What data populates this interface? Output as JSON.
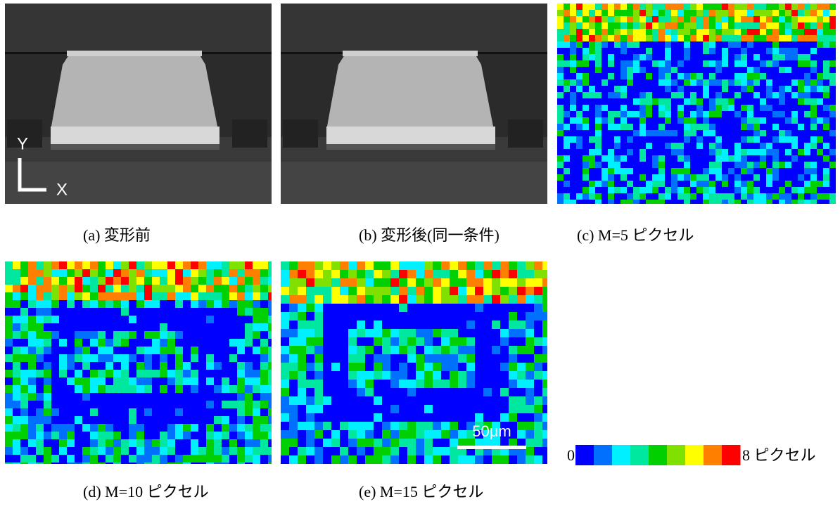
{
  "panels": [
    {
      "caption": "(a) 変形前"
    },
    {
      "caption": "(b) 変形後(同一条件)"
    },
    {
      "caption": "(c) M=5 ピクセル"
    },
    {
      "caption": "(d) M=10 ピクセル"
    },
    {
      "caption": "(e) M=15 ピクセル"
    }
  ],
  "axes": {
    "y": "Y",
    "x": "X"
  },
  "scale_bar": "50μm",
  "colorbar": {
    "min": "0",
    "max": "8 ピクセル",
    "colors": [
      "#0000ff",
      "#0070ff",
      "#00f0ff",
      "#00e8a0",
      "#00d000",
      "#80e000",
      "#ffff00",
      "#ff8000",
      "#ff0000"
    ]
  }
}
